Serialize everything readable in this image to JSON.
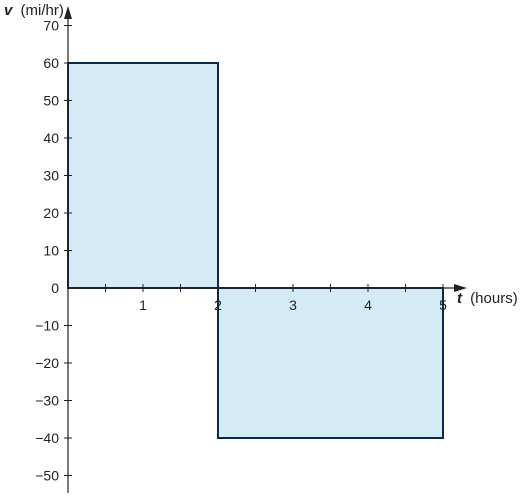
{
  "chart_data": {
    "type": "area",
    "x_axis": {
      "variable": "t",
      "units": "(hours)",
      "range": [
        0,
        5
      ],
      "tick_labels": [
        "1",
        "2",
        "3",
        "4",
        "5"
      ],
      "minor_step": 0.5
    },
    "y_axis": {
      "variable": "v",
      "units": "(mi/hr)",
      "range": [
        -50,
        70
      ],
      "tick_labels": [
        "70",
        "60",
        "50",
        "40",
        "30",
        "20",
        "10",
        "0",
        "−10",
        "−20",
        "−30",
        "−40",
        "−50"
      ]
    },
    "regions": [
      {
        "x": [
          0,
          2
        ],
        "y": 60
      },
      {
        "x": [
          2,
          5
        ],
        "y": -40
      }
    ],
    "colors": {
      "fill": "#d4ebf5",
      "stroke": "#0b2a4a",
      "axis": "#222222"
    },
    "grid": false
  }
}
